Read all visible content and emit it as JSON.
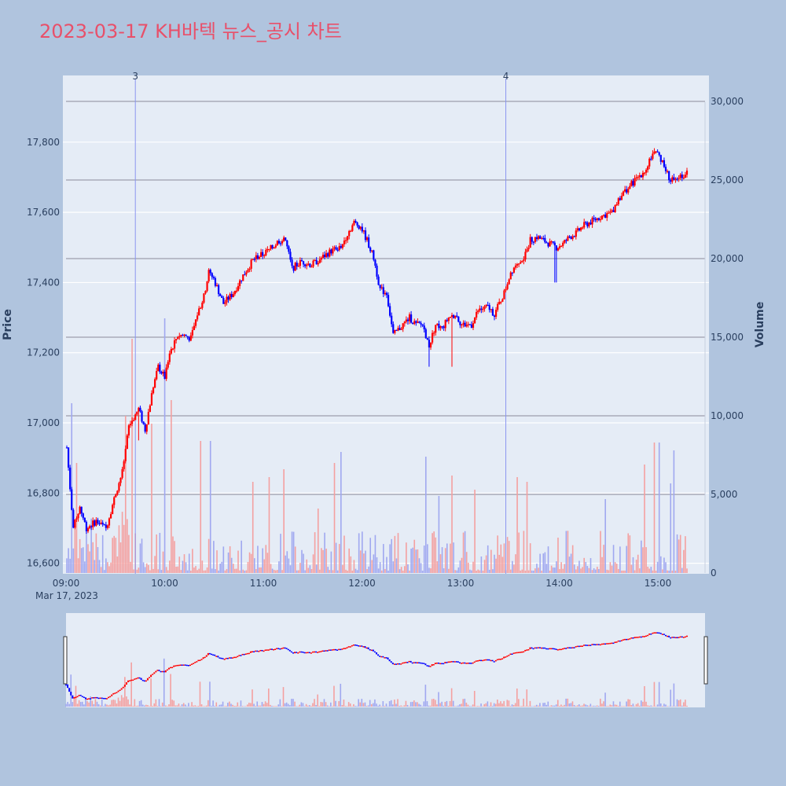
{
  "chart_data": {
    "type": "candlestick",
    "title": "2023-03-17 KH바텍 뉴스_공시 차트",
    "xlabel": "",
    "ylabel": "Price",
    "y2label": "Volume",
    "date_label": "Mar 17, 2023",
    "ylim": [
      16570,
      17990
    ],
    "y2lim": [
      0,
      31800
    ],
    "x_ticks": [
      "09:00",
      "10:00",
      "11:00",
      "12:00",
      "13:00",
      "14:00",
      "15:00"
    ],
    "y_ticks": [
      "16,600",
      "16,800",
      "17,000",
      "17,200",
      "17,400",
      "17,600",
      "17,800"
    ],
    "y2_ticks": [
      "0",
      "5,000",
      "10,000",
      "15,000",
      "20,000",
      "25,000",
      "30,000"
    ],
    "colors": {
      "up": "#ff0000",
      "down": "#0000ff",
      "up_volume": "#f4a0a0",
      "down_volume": "#a0a8f0",
      "news_line": "#8b96f0"
    },
    "news_markers": [
      {
        "label": "3",
        "time": "09:42"
      },
      {
        "label": "4",
        "time": "13:29"
      }
    ],
    "price_path": [
      [
        "09:00",
        16930
      ],
      [
        "09:04",
        16700
      ],
      [
        "09:08",
        16760
      ],
      [
        "09:12",
        16700
      ],
      [
        "09:18",
        16720
      ],
      [
        "09:24",
        16700
      ],
      [
        "09:30",
        16800
      ],
      [
        "09:34",
        16860
      ],
      [
        "09:38",
        16990
      ],
      [
        "09:44",
        17040
      ],
      [
        "09:48",
        16980
      ],
      [
        "09:52",
        17080
      ],
      [
        "09:56",
        17160
      ],
      [
        "10:00",
        17130
      ],
      [
        "10:03",
        17200
      ],
      [
        "10:08",
        17250
      ],
      [
        "10:12",
        17250
      ],
      [
        "10:16",
        17240
      ],
      [
        "10:20",
        17310
      ],
      [
        "10:24",
        17360
      ],
      [
        "10:27",
        17430
      ],
      [
        "10:30",
        17410
      ],
      [
        "10:36",
        17340
      ],
      [
        "10:42",
        17370
      ],
      [
        "10:48",
        17420
      ],
      [
        "10:55",
        17470
      ],
      [
        "11:00",
        17480
      ],
      [
        "11:06",
        17500
      ],
      [
        "11:10",
        17520
      ],
      [
        "11:14",
        17520
      ],
      [
        "11:18",
        17440
      ],
      [
        "11:24",
        17460
      ],
      [
        "11:30",
        17450
      ],
      [
        "11:36",
        17470
      ],
      [
        "11:42",
        17490
      ],
      [
        "11:48",
        17500
      ],
      [
        "11:52",
        17540
      ],
      [
        "11:56",
        17570
      ],
      [
        "12:00",
        17560
      ],
      [
        "12:04",
        17520
      ],
      [
        "12:08",
        17470
      ],
      [
        "12:12",
        17380
      ],
      [
        "12:16",
        17370
      ],
      [
        "12:20",
        17250
      ],
      [
        "12:24",
        17270
      ],
      [
        "12:30",
        17300
      ],
      [
        "12:34",
        17280
      ],
      [
        "12:38",
        17280
      ],
      [
        "12:42",
        17220
      ],
      [
        "12:46",
        17280
      ],
      [
        "12:50",
        17270
      ],
      [
        "12:54",
        17300
      ],
      [
        "12:58",
        17310
      ],
      [
        "13:02",
        17280
      ],
      [
        "13:08",
        17280
      ],
      [
        "13:12",
        17320
      ],
      [
        "13:18",
        17330
      ],
      [
        "13:22",
        17310
      ],
      [
        "13:28",
        17370
      ],
      [
        "13:32",
        17430
      ],
      [
        "13:36",
        17460
      ],
      [
        "13:40",
        17470
      ],
      [
        "13:44",
        17520
      ],
      [
        "13:48",
        17530
      ],
      [
        "13:52",
        17520
      ],
      [
        "13:56",
        17510
      ],
      [
        "14:00",
        17500
      ],
      [
        "14:04",
        17510
      ],
      [
        "14:08",
        17530
      ],
      [
        "14:12",
        17540
      ],
      [
        "14:16",
        17560
      ],
      [
        "14:20",
        17570
      ],
      [
        "14:24",
        17580
      ],
      [
        "14:28",
        17590
      ],
      [
        "14:34",
        17600
      ],
      [
        "14:38",
        17640
      ],
      [
        "14:42",
        17660
      ],
      [
        "14:46",
        17680
      ],
      [
        "14:50",
        17700
      ],
      [
        "14:54",
        17720
      ],
      [
        "14:58",
        17760
      ],
      [
        "15:02",
        17770
      ],
      [
        "15:06",
        17730
      ],
      [
        "15:10",
        17690
      ],
      [
        "15:14",
        17700
      ],
      [
        "15:20",
        17710
      ]
    ],
    "price_spikes": [
      [
        "09:44",
        16950
      ],
      [
        "10:06",
        17200
      ],
      [
        "12:42",
        17160
      ],
      [
        "12:56",
        17160
      ],
      [
        "13:32",
        17410
      ],
      [
        "13:59",
        17400
      ],
      [
        "14:00",
        17400
      ]
    ],
    "volume_peaks": [
      [
        "09:03",
        10800
      ],
      [
        "09:06",
        7000
      ],
      [
        "09:36",
        10000
      ],
      [
        "09:40",
        14900
      ],
      [
        "09:52",
        9500
      ],
      [
        "10:00",
        16200
      ],
      [
        "10:04",
        11000
      ],
      [
        "10:22",
        8400
      ],
      [
        "10:28",
        8400
      ],
      [
        "10:54",
        5800
      ],
      [
        "11:04",
        6100
      ],
      [
        "11:13",
        6600
      ],
      [
        "11:34",
        4100
      ],
      [
        "11:44",
        7000
      ],
      [
        "11:48",
        7700
      ],
      [
        "12:40",
        7400
      ],
      [
        "12:48",
        4900
      ],
      [
        "12:56",
        6200
      ],
      [
        "13:10",
        5300
      ],
      [
        "13:36",
        6100
      ],
      [
        "13:42",
        5800
      ],
      [
        "14:30",
        4700
      ],
      [
        "14:54",
        6900
      ],
      [
        "15:00",
        8300
      ],
      [
        "15:03",
        8300
      ],
      [
        "15:10",
        5700
      ],
      [
        "15:12",
        7800
      ]
    ]
  }
}
